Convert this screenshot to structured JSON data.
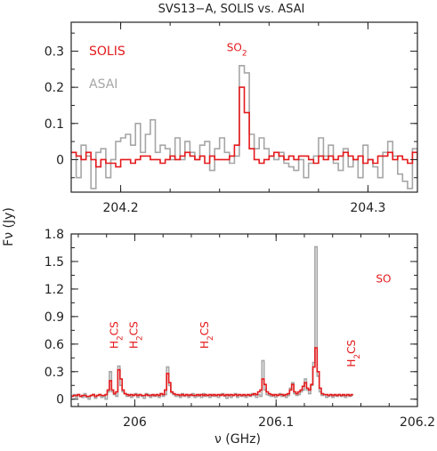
{
  "chart_data": [
    {
      "type": "line",
      "title": "SVS13−A, SOLIS vs. ASAI",
      "xlabel": "",
      "ylabel": "Fν (Jy)",
      "xlim": [
        204.18,
        204.32
      ],
      "ylim": [
        -0.09,
        0.38
      ],
      "x_ticks": [
        204.2,
        204.3
      ],
      "x_tick_labels": [
        "204.2",
        "204.3"
      ],
      "y_ticks": [
        0,
        0.1,
        0.2,
        0.3
      ],
      "y_tick_labels": [
        "0",
        "0.1",
        "0.2",
        "0.3"
      ],
      "legend": [
        {
          "name": "SOLIS",
          "color": "#e41a1c"
        },
        {
          "name": "ASAI",
          "color": "#a6a6a6"
        }
      ],
      "annotations": [
        {
          "text": "SO2",
          "x": 204.247,
          "y": 0.3
        }
      ],
      "series": [
        {
          "name": "ASAI",
          "color": "#a6a6a6",
          "x_start": 204.18,
          "step": 0.002,
          "values": [
            0.02,
            -0.05,
            0.04,
            0.01,
            -0.08,
            0.02,
            0.03,
            -0.05,
            0.0,
            0.05,
            0.06,
            0.07,
            0.04,
            0.1,
            0.02,
            0.07,
            0.11,
            0.02,
            0.04,
            0.03,
            0.0,
            0.06,
            0.0,
            0.05,
            0.02,
            0.0,
            0.04,
            0.05,
            -0.03,
            0.03,
            0.06,
            0.02,
            -0.01,
            0.01,
            0.26,
            0.24,
            0.07,
            0.03,
            0.06,
            0.03,
            0.01,
            0.0,
            0.02,
            -0.01,
            -0.02,
            -0.03,
            0.0,
            -0.05,
            -0.01,
            0.01,
            0.06,
            0.01,
            0.04,
            -0.01,
            -0.03,
            0.03,
            -0.02,
            0.0,
            -0.05,
            0.04,
            0.0,
            -0.02,
            -0.05,
            0.02,
            0.05,
            0.01,
            -0.04,
            -0.06,
            -0.08,
            0.03,
            -0.05
          ]
        },
        {
          "name": "SOLIS",
          "color": "#e41a1c",
          "x_start": 204.18,
          "step": 0.002,
          "values": [
            0.02,
            0.01,
            0.0,
            0.02,
            0.0,
            -0.02,
            0.0,
            -0.01,
            -0.01,
            -0.02,
            0.0,
            0.0,
            -0.01,
            0.0,
            0.01,
            0.01,
            0.0,
            0.0,
            -0.01,
            0.0,
            0.01,
            0.0,
            0.01,
            0.02,
            0.01,
            0.0,
            0.01,
            -0.01,
            0.01,
            0.0,
            0.0,
            0.0,
            0.01,
            0.04,
            0.2,
            0.13,
            0.03,
            0.0,
            -0.01,
            0.0,
            0.01,
            0.02,
            0.01,
            0.0,
            0.01,
            0.0,
            0.01,
            0.01,
            0.0,
            -0.01,
            0.01,
            0.0,
            0.01,
            0.0,
            0.01,
            0.02,
            0.01,
            0.0,
            0.01,
            -0.01,
            0.0,
            -0.01,
            0.01,
            0.01,
            0.02,
            0.0,
            0.01,
            0.0,
            -0.01,
            0.02,
            0.0
          ]
        }
      ]
    },
    {
      "type": "line",
      "title": "",
      "xlabel": "ν (GHz)",
      "ylabel": "Fν (Jy)",
      "xlim": [
        205.955,
        206.2
      ],
      "ylim": [
        -0.08,
        1.8
      ],
      "x_ticks": [
        206,
        206.1,
        206.2
      ],
      "x_tick_labels": [
        "206",
        "206.1",
        "206.2"
      ],
      "y_ticks": [
        0,
        0.3,
        0.6,
        0.9,
        1.2,
        1.5,
        1.8
      ],
      "y_tick_labels": [
        "0",
        "0.3",
        "0.6",
        "0.9",
        "1.2",
        "1.5",
        "1.8"
      ],
      "annotations": [
        {
          "text": "H2CS",
          "x": 205.988,
          "y": 0.55,
          "rotated": true
        },
        {
          "text": "H2CS",
          "x": 206.002,
          "y": 0.55,
          "rotated": true
        },
        {
          "text": "H2CS",
          "x": 206.052,
          "y": 0.55,
          "rotated": true
        },
        {
          "text": "H2CS",
          "x": 206.156,
          "y": 0.35,
          "rotated": true
        },
        {
          "text": "SO",
          "x": 206.176,
          "y": 1.27
        }
      ],
      "series": [
        {
          "name": "ASAI",
          "color": "#a6a6a6",
          "x_start": 205.955,
          "step": 0.0015,
          "values": [
            0.03,
            0.05,
            0.02,
            0.05,
            0.03,
            0.02,
            0.06,
            0.02,
            0.0,
            0.04,
            0.05,
            0.01,
            0.04,
            0.05,
            0.02,
            0.03,
            0.0,
            0.08,
            0.3,
            0.08,
            0.05,
            0.03,
            0.36,
            0.15,
            0.08,
            0.06,
            0.03,
            0.05,
            0.02,
            0.04,
            0.06,
            0.02,
            0.05,
            0.03,
            0.01,
            0.06,
            0.05,
            0.02,
            0.04,
            0.03,
            0.05,
            0.02,
            0.06,
            0.03,
            0.05,
            0.35,
            0.15,
            0.07,
            0.05,
            0.03,
            0.04,
            0.02,
            0.06,
            0.03,
            0.05,
            0.02,
            0.04,
            0.06,
            0.02,
            0.03,
            0.05,
            0.02,
            0.06,
            0.03,
            0.04,
            0.02,
            0.05,
            0.03,
            0.04,
            0.02,
            0.05,
            0.06,
            0.03,
            0.01,
            0.05,
            0.02,
            0.04,
            0.06,
            0.02,
            0.05,
            0.03,
            0.04,
            0.02,
            0.05,
            0.03,
            0.06,
            0.04,
            0.02,
            0.05,
            0.03,
            0.42,
            0.1,
            0.05,
            0.04,
            0.03,
            0.05,
            0.02,
            0.04,
            0.06,
            0.03,
            0.05,
            0.02,
            0.04,
            0.12,
            0.18,
            0.06,
            0.04,
            0.05,
            0.08,
            0.1,
            0.22,
            0.1,
            0.06,
            0.15,
            0.4,
            1.66,
            0.25,
            0.08,
            0.04,
            0.05,
            0.02,
            0.03,
            0.05,
            0.02,
            0.04,
            0.03,
            0.05,
            0.03,
            0.04,
            0.02,
            0.05,
            0.03,
            0.04
          ]
        },
        {
          "name": "SOLIS",
          "color": "#e41a1c",
          "x_start": 205.955,
          "step": 0.0015,
          "values": [
            0.03,
            0.04,
            0.04,
            0.05,
            0.03,
            0.04,
            0.04,
            0.03,
            0.03,
            0.04,
            0.05,
            0.03,
            0.04,
            0.05,
            0.04,
            0.04,
            0.05,
            0.1,
            0.2,
            0.1,
            0.06,
            0.08,
            0.32,
            0.22,
            0.1,
            0.06,
            0.05,
            0.04,
            0.05,
            0.04,
            0.05,
            0.04,
            0.05,
            0.04,
            0.04,
            0.05,
            0.04,
            0.04,
            0.05,
            0.04,
            0.05,
            0.04,
            0.06,
            0.05,
            0.1,
            0.28,
            0.18,
            0.08,
            0.06,
            0.05,
            0.05,
            0.04,
            0.05,
            0.04,
            0.05,
            0.04,
            0.05,
            0.04,
            0.04,
            0.05,
            0.04,
            0.05,
            0.04,
            0.05,
            0.04,
            0.05,
            0.04,
            0.05,
            0.04,
            0.05,
            0.04,
            0.05,
            0.04,
            0.05,
            0.04,
            0.05,
            0.04,
            0.05,
            0.04,
            0.05,
            0.04,
            0.05,
            0.04,
            0.05,
            0.04,
            0.05,
            0.06,
            0.05,
            0.08,
            0.1,
            0.22,
            0.16,
            0.08,
            0.06,
            0.05,
            0.04,
            0.05,
            0.04,
            0.05,
            0.05,
            0.04,
            0.05,
            0.06,
            0.1,
            0.16,
            0.08,
            0.06,
            0.08,
            0.1,
            0.14,
            0.18,
            0.12,
            0.1,
            0.16,
            0.35,
            0.56,
            0.3,
            0.12,
            0.06,
            0.05,
            0.05,
            0.04,
            0.05,
            0.04,
            0.05,
            0.04,
            0.05,
            0.04,
            0.05,
            0.04,
            0.05,
            0.04,
            0.05
          ]
        }
      ]
    }
  ]
}
